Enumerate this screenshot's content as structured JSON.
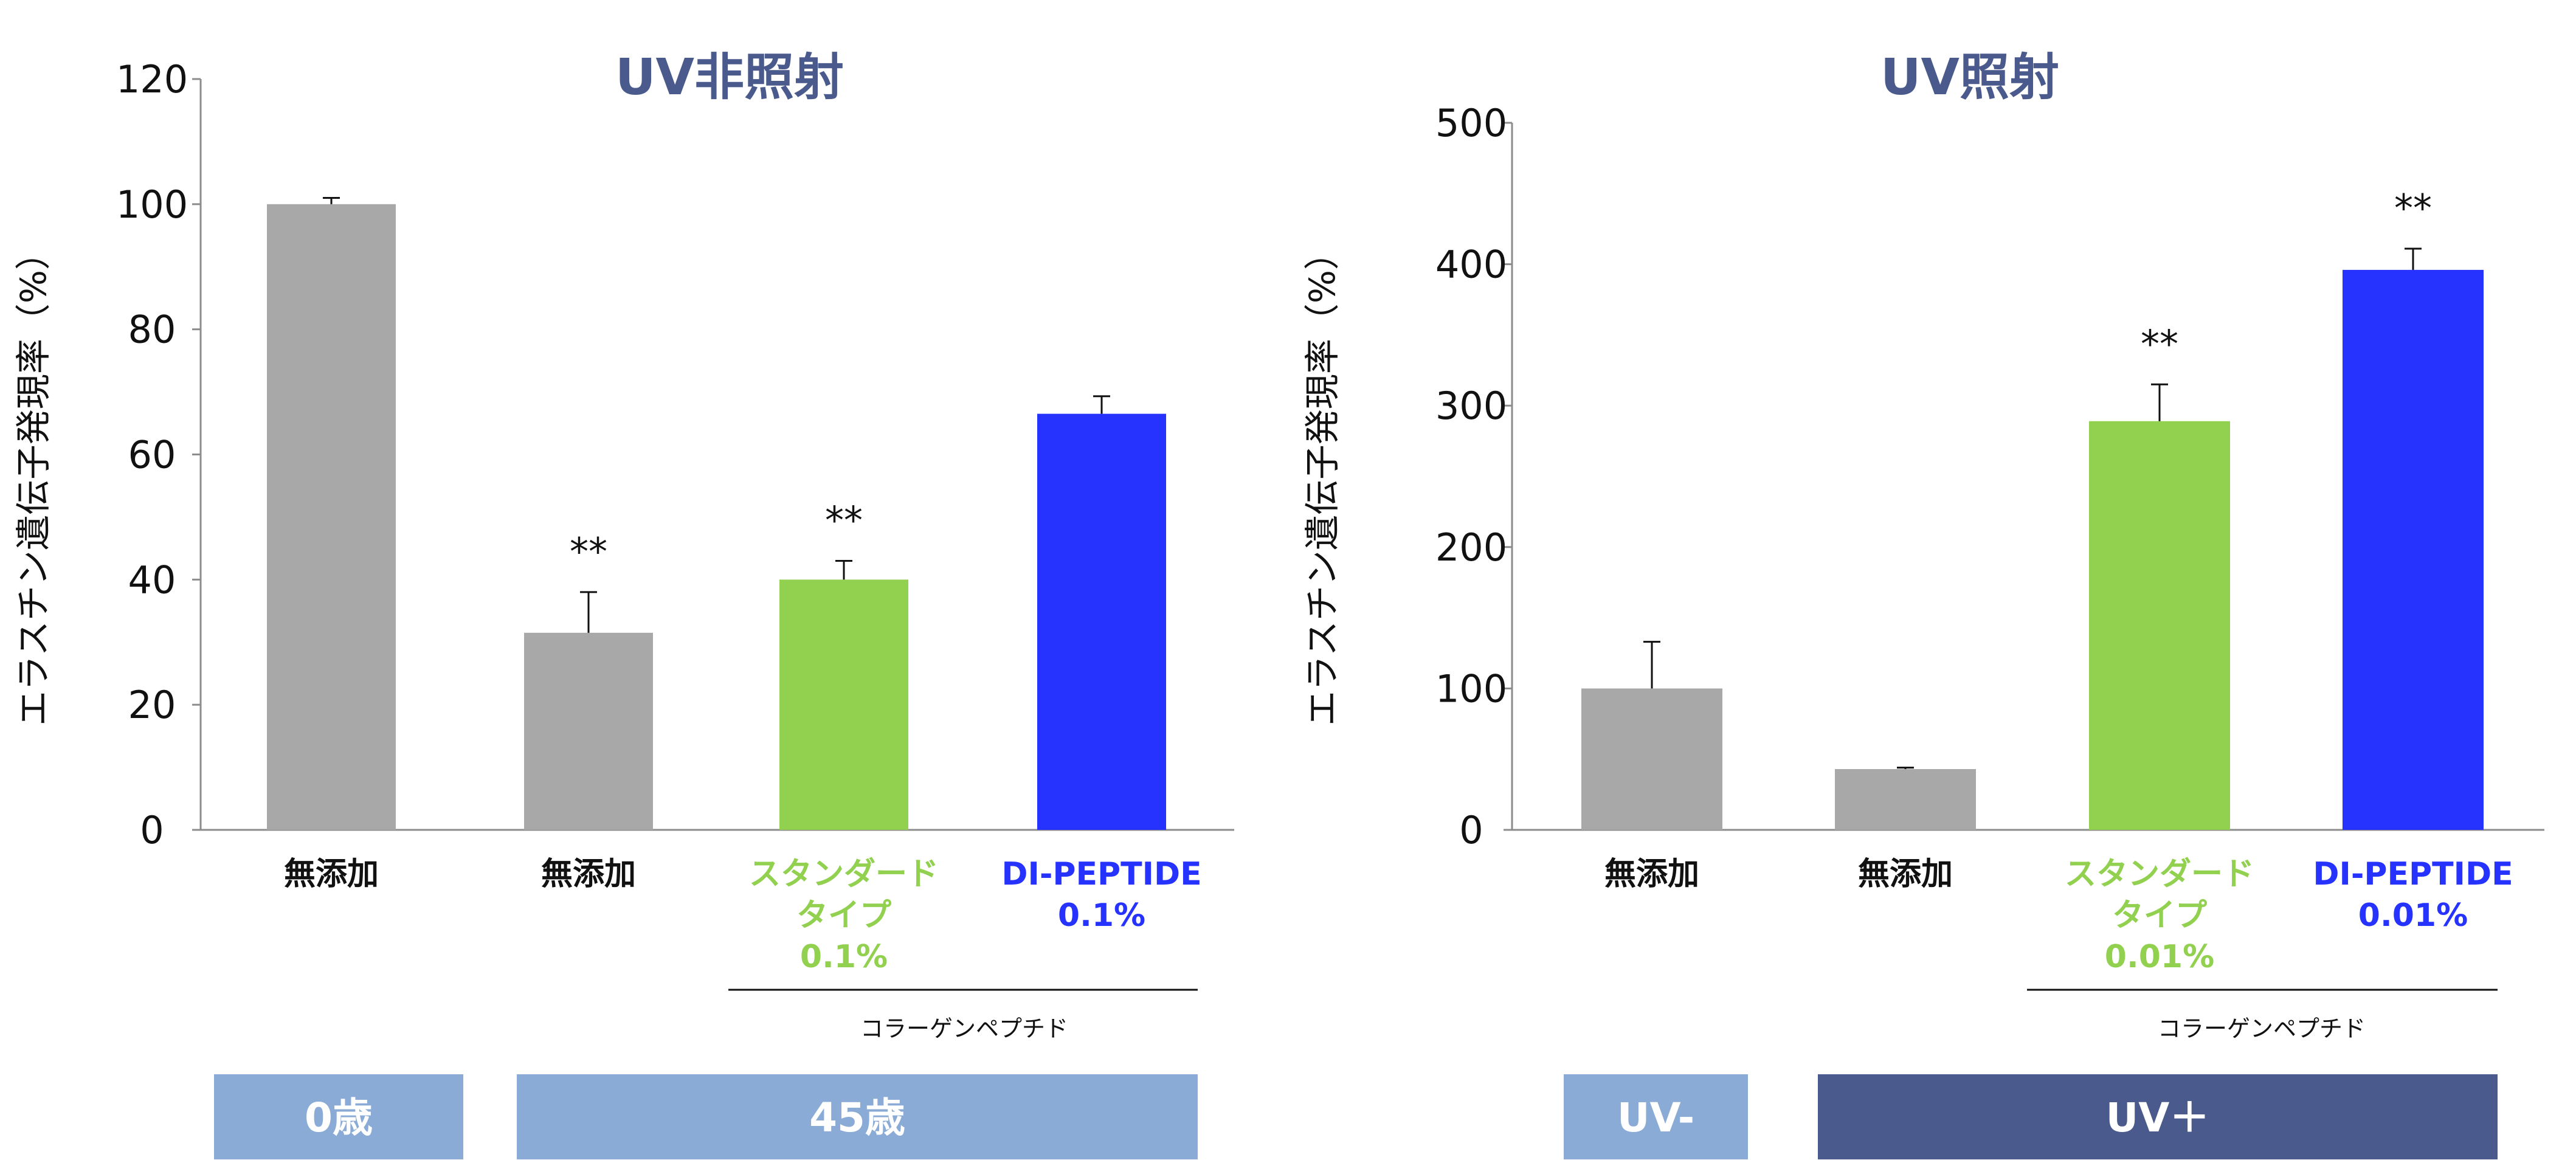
{
  "colors": {
    "gray_bar": "#a8a8a8",
    "green_bar": "#92d050",
    "blue_bar": "#2633ff",
    "title": "#4a5a8c",
    "band_light": "#8aabd6",
    "band_dark": "#4a5a8c",
    "green_text": "#92d050",
    "blue_text": "#2633ff"
  },
  "chart_data": [
    {
      "type": "bar",
      "title": "UV非照射",
      "ylabel": "エラスチン遺伝子発現率（%）",
      "ylim": [
        0,
        120
      ],
      "yticks": [
        "0",
        "20",
        "40",
        "60",
        "80",
        "100",
        "120"
      ],
      "categories": [
        {
          "lines": [
            "無添加"
          ],
          "color": "black"
        },
        {
          "lines": [
            "無添加"
          ],
          "color": "black"
        },
        {
          "lines": [
            "スタンダード",
            "タイプ",
            "0.1%"
          ],
          "color": "green"
        },
        {
          "lines": [
            "DI-PEPTIDE",
            "0.1%"
          ],
          "color": "blue"
        }
      ],
      "values": [
        100,
        31.5,
        40,
        66.5
      ],
      "errors": [
        1,
        6.5,
        3,
        2.8
      ],
      "bar_colors": [
        "gray",
        "gray",
        "green",
        "blue"
      ],
      "significance": [
        "",
        "**",
        "**",
        ""
      ],
      "bracket_label": "コラーゲンペプチド",
      "bands": [
        {
          "label": "0歳",
          "shade": "light"
        },
        {
          "label": "45歳",
          "shade": "light"
        }
      ]
    },
    {
      "type": "bar",
      "title": "UV照射",
      "ylabel": "エラスチン遺伝子発現率（%）",
      "ylim": [
        0,
        500
      ],
      "yticks": [
        "0",
        "100",
        "200",
        "300",
        "400",
        "500"
      ],
      "categories": [
        {
          "lines": [
            "無添加"
          ],
          "color": "black"
        },
        {
          "lines": [
            "無添加"
          ],
          "color": "black"
        },
        {
          "lines": [
            "スタンダード",
            "タイプ",
            "0.01%"
          ],
          "color": "green"
        },
        {
          "lines": [
            "DI-PEPTIDE",
            "0.01%"
          ],
          "color": "blue"
        }
      ],
      "values": [
        100,
        43,
        289,
        396
      ],
      "errors": [
        33,
        1,
        26,
        15
      ],
      "bar_colors": [
        "gray",
        "gray",
        "green",
        "blue"
      ],
      "significance": [
        "",
        "",
        "**",
        "**"
      ],
      "bracket_label": "コラーゲンペプチド",
      "bands": [
        {
          "label": "UV-",
          "shade": "light"
        },
        {
          "label": "UV＋",
          "shade": "dark"
        }
      ]
    }
  ]
}
